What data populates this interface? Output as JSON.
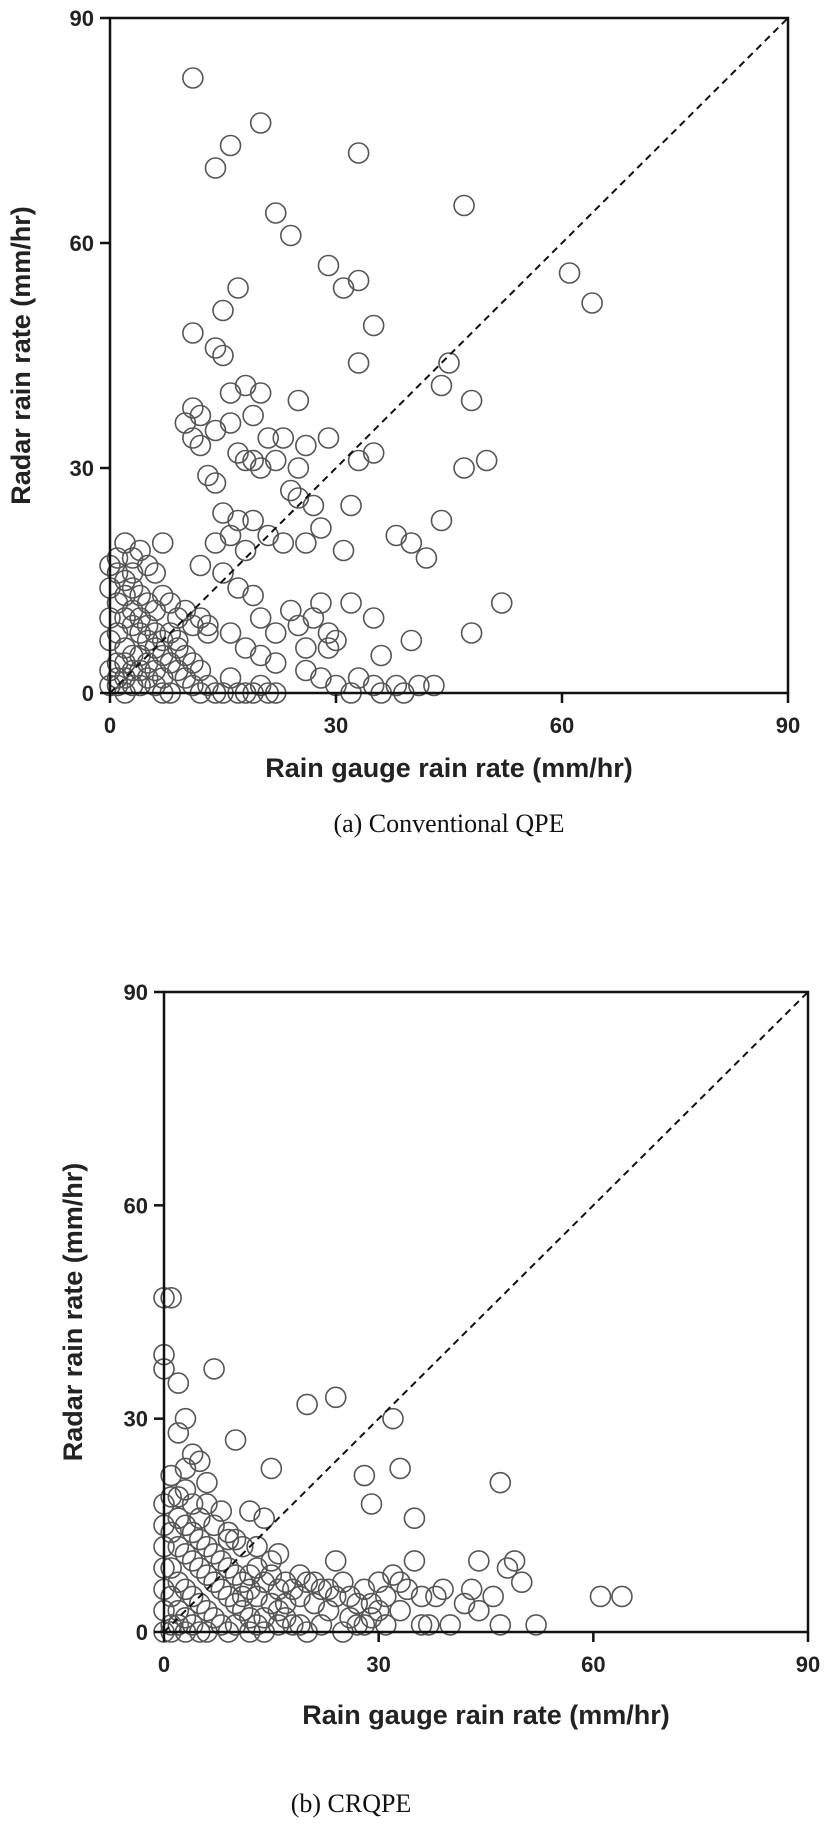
{
  "chart_data": [
    {
      "type": "scatter",
      "caption": "(a) Conventional QPE",
      "xlabel": "Rain gauge rain rate (mm/hr)",
      "ylabel": "Radar rain rate (mm/hr)",
      "xlim": [
        0,
        90
      ],
      "ylim": [
        0,
        90
      ],
      "xticks": [
        "0",
        "30",
        "60",
        "90"
      ],
      "yticks": [
        "0",
        "30",
        "60",
        "90"
      ],
      "reference_line": "1:1 dashed",
      "marker": "open circle",
      "points": [
        [
          11,
          82
        ],
        [
          20,
          76
        ],
        [
          16,
          73
        ],
        [
          14,
          70
        ],
        [
          33,
          72
        ],
        [
          47,
          65
        ],
        [
          22,
          64
        ],
        [
          24,
          61
        ],
        [
          29,
          57
        ],
        [
          31,
          54
        ],
        [
          33,
          55
        ],
        [
          17,
          54
        ],
        [
          61,
          56
        ],
        [
          64,
          52
        ],
        [
          15,
          51
        ],
        [
          11,
          48
        ],
        [
          35,
          49
        ],
        [
          14,
          46
        ],
        [
          15,
          45
        ],
        [
          33,
          44
        ],
        [
          45,
          44
        ],
        [
          11,
          38
        ],
        [
          12,
          37
        ],
        [
          14,
          35
        ],
        [
          16,
          40
        ],
        [
          18,
          41
        ],
        [
          20,
          40
        ],
        [
          25,
          39
        ],
        [
          44,
          41
        ],
        [
          48,
          39
        ],
        [
          10,
          36
        ],
        [
          11,
          34
        ],
        [
          12,
          33
        ],
        [
          16,
          36
        ],
        [
          19,
          37
        ],
        [
          21,
          34
        ],
        [
          23,
          34
        ],
        [
          26,
          33
        ],
        [
          29,
          34
        ],
        [
          17,
          32
        ],
        [
          18,
          31
        ],
        [
          19,
          31
        ],
        [
          20,
          30
        ],
        [
          22,
          31
        ],
        [
          25,
          30
        ],
        [
          33,
          31
        ],
        [
          35,
          32
        ],
        [
          47,
          30
        ],
        [
          50,
          31
        ],
        [
          13,
          29
        ],
        [
          14,
          28
        ],
        [
          24,
          27
        ],
        [
          25,
          26
        ],
        [
          27,
          25
        ],
        [
          32,
          25
        ],
        [
          15,
          24
        ],
        [
          17,
          23
        ],
        [
          19,
          23
        ],
        [
          21,
          21
        ],
        [
          23,
          20
        ],
        [
          28,
          22
        ],
        [
          38,
          21
        ],
        [
          44,
          23
        ],
        [
          14,
          20
        ],
        [
          16,
          21
        ],
        [
          18,
          19
        ],
        [
          26,
          20
        ],
        [
          31,
          19
        ],
        [
          40,
          20
        ],
        [
          42,
          18
        ],
        [
          12,
          17
        ],
        [
          15,
          16
        ],
        [
          17,
          14
        ],
        [
          19,
          13
        ],
        [
          24,
          11
        ],
        [
          28,
          12
        ],
        [
          32,
          12
        ],
        [
          52,
          12
        ],
        [
          20,
          10
        ],
        [
          25,
          9
        ],
        [
          27,
          10
        ],
        [
          29,
          8
        ],
        [
          30,
          7
        ],
        [
          35,
          10
        ],
        [
          22,
          8
        ],
        [
          26,
          6
        ],
        [
          29,
          6
        ],
        [
          36,
          5
        ],
        [
          40,
          7
        ],
        [
          48,
          8
        ],
        [
          13,
          9
        ],
        [
          16,
          8
        ],
        [
          18,
          6
        ],
        [
          20,
          5
        ],
        [
          22,
          4
        ],
        [
          26,
          3
        ],
        [
          28,
          2
        ],
        [
          30,
          1
        ],
        [
          33,
          2
        ],
        [
          35,
          1
        ],
        [
          38,
          1
        ],
        [
          41,
          1
        ],
        [
          43,
          1
        ],
        [
          32,
          0
        ],
        [
          36,
          0
        ],
        [
          39,
          0
        ],
        [
          2,
          20
        ],
        [
          3,
          18
        ],
        [
          4,
          19
        ],
        [
          5,
          17
        ],
        [
          6,
          16
        ],
        [
          7,
          20
        ],
        [
          1,
          16
        ],
        [
          2,
          15
        ],
        [
          3,
          14
        ],
        [
          4,
          13
        ],
        [
          5,
          12
        ],
        [
          6,
          11
        ],
        [
          7,
          13
        ],
        [
          8,
          12
        ],
        [
          9,
          10
        ],
        [
          10,
          11
        ],
        [
          11,
          9
        ],
        [
          12,
          10
        ],
        [
          13,
          8
        ],
        [
          1,
          12
        ],
        [
          2,
          10
        ],
        [
          3,
          9
        ],
        [
          4,
          8
        ],
        [
          5,
          7
        ],
        [
          6,
          6
        ],
        [
          7,
          5
        ],
        [
          8,
          4
        ],
        [
          9,
          3
        ],
        [
          10,
          2
        ],
        [
          11,
          1
        ],
        [
          12,
          0
        ],
        [
          1,
          8
        ],
        [
          2,
          6
        ],
        [
          3,
          5
        ],
        [
          4,
          3
        ],
        [
          5,
          2
        ],
        [
          6,
          1
        ],
        [
          7,
          0
        ],
        [
          1,
          4
        ],
        [
          2,
          2
        ],
        [
          3,
          1
        ],
        [
          1,
          1
        ],
        [
          2,
          0
        ],
        [
          0,
          3
        ],
        [
          0,
          7
        ],
        [
          0,
          10
        ],
        [
          0,
          14
        ],
        [
          4,
          1
        ],
        [
          8,
          0
        ],
        [
          9,
          7
        ],
        [
          10,
          5
        ],
        [
          11,
          4
        ],
        [
          12,
          3
        ],
        [
          13,
          1
        ],
        [
          14,
          0
        ],
        [
          15,
          0
        ],
        [
          16,
          2
        ],
        [
          17,
          0
        ],
        [
          18,
          0
        ],
        [
          19,
          0
        ],
        [
          20,
          1
        ],
        [
          21,
          0
        ],
        [
          22,
          0
        ],
        [
          0,
          1
        ],
        [
          1,
          2
        ],
        [
          2,
          4
        ],
        [
          3,
          3
        ],
        [
          4,
          5
        ],
        [
          5,
          4
        ],
        [
          6,
          3
        ],
        [
          7,
          2
        ],
        [
          8,
          8
        ],
        [
          9,
          6
        ],
        [
          3,
          11
        ],
        [
          4,
          10
        ],
        [
          5,
          9
        ],
        [
          6,
          8
        ],
        [
          7,
          7
        ],
        [
          2,
          13
        ],
        [
          3,
          16
        ],
        [
          1,
          18
        ],
        [
          0,
          17
        ]
      ]
    },
    {
      "type": "scatter",
      "caption": "(b) CRQPE",
      "xlabel": "Rain gauge rain rate (mm/hr)",
      "ylabel": "Radar rain rate (mm/hr)",
      "xlim": [
        0,
        90
      ],
      "ylim": [
        0,
        90
      ],
      "xticks": [
        "0",
        "30",
        "60",
        "90"
      ],
      "yticks": [
        "0",
        "30",
        "60",
        "90"
      ],
      "reference_line": "1:1 dashed",
      "marker": "open circle",
      "points": [
        [
          0,
          47
        ],
        [
          1,
          47
        ],
        [
          0,
          39
        ],
        [
          0,
          37
        ],
        [
          7,
          37
        ],
        [
          2,
          35
        ],
        [
          3,
          30
        ],
        [
          20,
          32
        ],
        [
          24,
          33
        ],
        [
          32,
          30
        ],
        [
          10,
          27
        ],
        [
          2,
          28
        ],
        [
          4,
          25
        ],
        [
          5,
          24
        ],
        [
          1,
          22
        ],
        [
          3,
          23
        ],
        [
          15,
          23
        ],
        [
          33,
          23
        ],
        [
          28,
          22
        ],
        [
          47,
          21
        ],
        [
          6,
          21
        ],
        [
          29,
          18
        ],
        [
          35,
          16
        ],
        [
          2,
          19
        ],
        [
          4,
          18
        ],
        [
          6,
          18
        ],
        [
          8,
          17
        ],
        [
          12,
          17
        ],
        [
          14,
          16
        ],
        [
          9,
          14
        ],
        [
          10,
          13
        ],
        [
          13,
          12
        ],
        [
          16,
          11
        ],
        [
          15,
          10
        ],
        [
          24,
          10
        ],
        [
          35,
          10
        ],
        [
          44,
          10
        ],
        [
          48,
          9
        ],
        [
          49,
          10
        ],
        [
          50,
          7
        ],
        [
          61,
          5
        ],
        [
          64,
          5
        ],
        [
          46,
          5
        ],
        [
          43,
          6
        ],
        [
          42,
          4
        ],
        [
          38,
          5
        ],
        [
          39,
          6
        ],
        [
          30,
          7
        ],
        [
          32,
          8
        ],
        [
          33,
          7
        ],
        [
          28,
          6
        ],
        [
          25,
          7
        ],
        [
          22,
          6
        ],
        [
          20,
          7
        ],
        [
          18,
          6
        ],
        [
          16,
          6
        ],
        [
          14,
          7
        ],
        [
          12,
          8
        ],
        [
          11,
          5
        ],
        [
          17,
          4
        ],
        [
          19,
          5
        ],
        [
          21,
          4
        ],
        [
          23,
          3
        ],
        [
          26,
          2
        ],
        [
          28,
          1
        ],
        [
          29,
          2
        ],
        [
          31,
          1
        ],
        [
          33,
          3
        ],
        [
          36,
          1
        ],
        [
          37,
          1
        ],
        [
          40,
          1
        ],
        [
          47,
          1
        ],
        [
          52,
          1
        ],
        [
          44,
          3
        ],
        [
          20,
          0
        ],
        [
          22,
          1
        ],
        [
          25,
          0
        ],
        [
          27,
          1
        ],
        [
          1,
          14
        ],
        [
          2,
          12
        ],
        [
          3,
          11
        ],
        [
          4,
          10
        ],
        [
          5,
          9
        ],
        [
          6,
          8
        ],
        [
          7,
          7
        ],
        [
          8,
          6
        ],
        [
          9,
          5
        ],
        [
          10,
          4
        ],
        [
          11,
          3
        ],
        [
          12,
          2
        ],
        [
          13,
          1
        ],
        [
          14,
          0
        ],
        [
          1,
          9
        ],
        [
          2,
          7
        ],
        [
          3,
          6
        ],
        [
          4,
          5
        ],
        [
          5,
          4
        ],
        [
          6,
          3
        ],
        [
          7,
          2
        ],
        [
          8,
          1
        ],
        [
          9,
          0
        ],
        [
          1,
          5
        ],
        [
          2,
          3
        ],
        [
          3,
          2
        ],
        [
          4,
          1
        ],
        [
          5,
          0
        ],
        [
          1,
          1
        ],
        [
          0,
          3
        ],
        [
          0,
          6
        ],
        [
          0,
          9
        ],
        [
          0,
          12
        ],
        [
          0,
          15
        ],
        [
          2,
          16
        ],
        [
          3,
          15
        ],
        [
          4,
          14
        ],
        [
          5,
          13
        ],
        [
          6,
          12
        ],
        [
          7,
          11
        ],
        [
          8,
          10
        ],
        [
          9,
          9
        ],
        [
          10,
          8
        ],
        [
          11,
          7
        ],
        [
          12,
          6
        ],
        [
          13,
          5
        ],
        [
          15,
          4
        ],
        [
          16,
          3
        ],
        [
          17,
          2
        ],
        [
          18,
          1
        ],
        [
          19,
          1
        ],
        [
          0,
          18
        ],
        [
          1,
          19
        ],
        [
          3,
          20
        ],
        [
          5,
          16
        ],
        [
          7,
          15
        ],
        [
          9,
          13
        ],
        [
          11,
          12
        ],
        [
          13,
          9
        ],
        [
          15,
          8
        ],
        [
          17,
          7
        ],
        [
          19,
          8
        ],
        [
          21,
          7
        ],
        [
          23,
          6
        ],
        [
          24,
          5
        ],
        [
          26,
          5
        ],
        [
          27,
          4
        ],
        [
          29,
          4
        ],
        [
          30,
          3
        ],
        [
          31,
          5
        ],
        [
          34,
          6
        ],
        [
          36,
          5
        ],
        [
          0,
          0
        ],
        [
          1,
          0
        ],
        [
          2,
          1
        ],
        [
          3,
          0
        ],
        [
          6,
          0
        ],
        [
          10,
          1
        ],
        [
          12,
          0
        ],
        [
          14,
          2
        ],
        [
          16,
          1
        ]
      ]
    }
  ]
}
